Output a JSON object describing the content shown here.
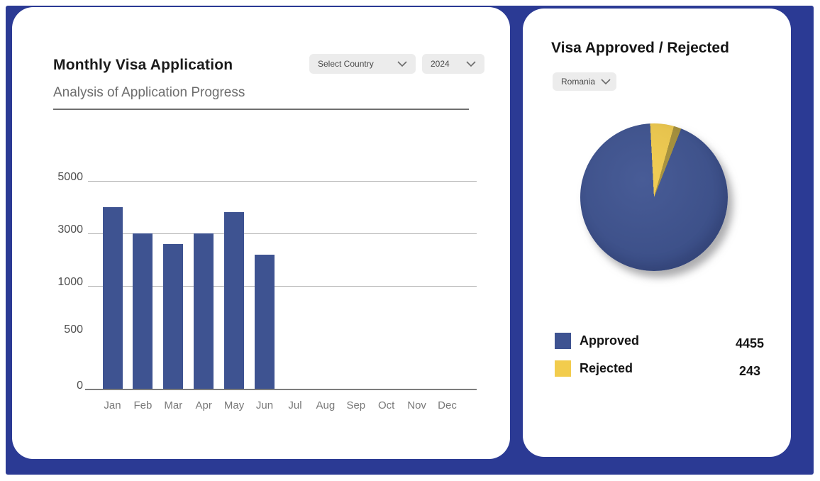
{
  "theme": {
    "background_color": "#2b3a94",
    "card_color": "#ffffff",
    "accent_blue": "#3e5391",
    "accent_yellow": "#f2cc4d",
    "pie_edge_gold": "#a8923a"
  },
  "left_card": {
    "title": "Monthly Visa Application",
    "subtitle": "Analysis of Application Progress",
    "country_dropdown": {
      "value": "Select Country"
    },
    "year_dropdown": {
      "value": "2024"
    }
  },
  "right_card": {
    "title": "Visa Approved / Rejected",
    "country_dropdown": {
      "value": "Romania"
    }
  },
  "chart_data": [
    {
      "type": "bar",
      "title": "Monthly Visa Application",
      "categories": [
        "Jan",
        "Feb",
        "Mar",
        "Apr",
        "May",
        "Jun",
        "Jul",
        "Aug",
        "Sep",
        "Oct",
        "Nov",
        "Dec"
      ],
      "values": [
        4000,
        3000,
        2600,
        3000,
        3800,
        2200,
        0,
        0,
        0,
        0,
        0,
        0
      ],
      "xlabel": "",
      "ylabel": "",
      "y_ticks": [
        0,
        500,
        1000,
        3000,
        5000
      ],
      "gridline_ticks": [
        1000,
        3000,
        5000
      ],
      "ylim": [
        0,
        5000
      ],
      "bar_color": "#3e5391",
      "grid": "horizontal"
    },
    {
      "type": "pie",
      "title": "Visa Approved / Rejected",
      "labels": [
        "Approved",
        "Rejected"
      ],
      "values": [
        4455,
        243
      ],
      "colors": [
        "#3e5391",
        "#f2cc4d"
      ],
      "legend_position": "bottom"
    }
  ]
}
